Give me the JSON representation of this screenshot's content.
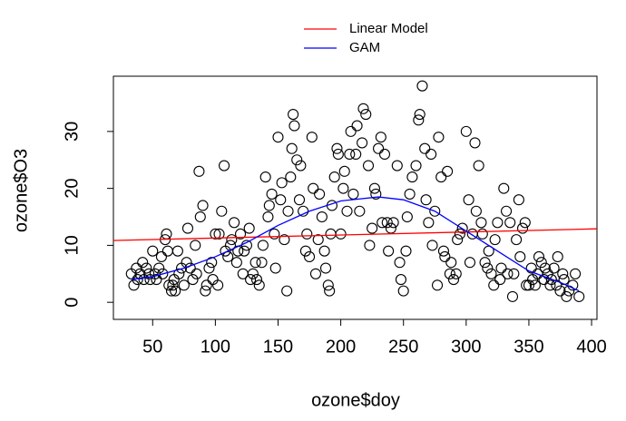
{
  "chart_data": {
    "type": "scatter",
    "x_label": "ozone$doy",
    "y_label": "ozone$O3",
    "xlim": [
      18.7,
      404.3
    ],
    "ylim": [
      -3.0,
      39.7
    ],
    "xticks": [
      50,
      100,
      150,
      200,
      250,
      300,
      350,
      400
    ],
    "yticks": [
      0,
      10,
      20,
      30
    ],
    "point_color": "#000000",
    "legend": "top",
    "x": [
      33,
      35,
      37,
      38,
      40,
      42,
      43,
      45,
      47,
      48,
      50,
      52,
      53,
      55,
      57,
      58,
      60,
      61,
      62,
      63,
      65,
      66,
      67,
      68,
      70,
      71,
      73,
      75,
      77,
      78,
      80,
      82,
      84,
      85,
      87,
      88,
      90,
      92,
      93,
      95,
      97,
      98,
      100,
      102,
      103,
      105,
      107,
      108,
      110,
      112,
      113,
      115,
      117,
      118,
      120,
      122,
      123,
      125,
      127,
      128,
      130,
      132,
      133,
      135,
      137,
      138,
      140,
      142,
      143,
      145,
      147,
      148,
      150,
      152,
      153,
      155,
      157,
      158,
      160,
      161,
      162,
      163,
      165,
      167,
      168,
      170,
      172,
      173,
      175,
      177,
      178,
      180,
      182,
      183,
      185,
      187,
      188,
      190,
      191,
      192,
      193,
      195,
      197,
      198,
      200,
      202,
      203,
      205,
      207,
      208,
      210,
      212,
      213,
      215,
      217,
      218,
      220,
      222,
      223,
      225,
      227,
      228,
      230,
      232,
      233,
      235,
      237,
      238,
      240,
      242,
      245,
      247,
      248,
      250,
      252,
      253,
      255,
      257,
      260,
      262,
      263,
      265,
      267,
      268,
      270,
      272,
      273,
      275,
      277,
      278,
      280,
      282,
      283,
      285,
      287,
      288,
      290,
      292,
      293,
      295,
      297,
      300,
      302,
      303,
      305,
      307,
      308,
      310,
      312,
      313,
      315,
      317,
      318,
      320,
      322,
      323,
      325,
      327,
      328,
      330,
      332,
      333,
      335,
      337,
      338,
      340,
      342,
      343,
      345,
      347,
      348,
      350,
      352,
      353,
      355,
      357,
      358,
      360,
      362,
      363,
      365,
      367,
      368,
      370,
      372,
      373,
      375,
      377,
      378,
      380,
      382,
      385,
      387,
      390
    ],
    "values": [
      5,
      3,
      6,
      4,
      5,
      7,
      4,
      6,
      5,
      4,
      9,
      5,
      4,
      6,
      8,
      5,
      11,
      12,
      9,
      3,
      2,
      3,
      4,
      2,
      9,
      5,
      6,
      3,
      7,
      13,
      6,
      4,
      10,
      5,
      23,
      15,
      17,
      2,
      3,
      6,
      7,
      4,
      12,
      3,
      12,
      16,
      24,
      9,
      8,
      10,
      11,
      14,
      7,
      9,
      12,
      5,
      9,
      10,
      13,
      4,
      5,
      7,
      4,
      3,
      7,
      10,
      22,
      15,
      17,
      19,
      12,
      6,
      29,
      18,
      21,
      11,
      2,
      16,
      22,
      27,
      33,
      31,
      25,
      18,
      24,
      16,
      9,
      12,
      8,
      29,
      20,
      5,
      11,
      19,
      15,
      9,
      6,
      3,
      2,
      12,
      17,
      22,
      27,
      26,
      12,
      20,
      23,
      16,
      26,
      30,
      19,
      26,
      31,
      16,
      28,
      34,
      33,
      24,
      10,
      13,
      20,
      19,
      27,
      29,
      14,
      26,
      14,
      9,
      13,
      14,
      24,
      7,
      4,
      2,
      9,
      15,
      19,
      22,
      24,
      32,
      33,
      38,
      27,
      18,
      14,
      26,
      10,
      16,
      3,
      29,
      22,
      9,
      8,
      23,
      5,
      7,
      4,
      5,
      11,
      12,
      13,
      30,
      18,
      7,
      12,
      28,
      16,
      24,
      14,
      12,
      7,
      6,
      9,
      5,
      3,
      11,
      14,
      4,
      6,
      20,
      16,
      5,
      14,
      1,
      5,
      11,
      18,
      8,
      13,
      14,
      3,
      3,
      6,
      4,
      3,
      5,
      8,
      7,
      4,
      6,
      5,
      3,
      4,
      6,
      3,
      8,
      2,
      5,
      4,
      1,
      2,
      3,
      5,
      1
    ],
    "lines": [
      {
        "name": "Linear Model",
        "color": "#ff0000",
        "x": [
          18.7,
          404.3
        ],
        "values": [
          10.85,
          12.9
        ]
      },
      {
        "name": "GAM",
        "color": "#0000ff",
        "x": [
          33,
          50,
          75,
          100,
          125,
          150,
          175,
          200,
          230,
          250,
          275,
          300,
          325,
          350,
          375,
          390
        ],
        "values": [
          4,
          4.5,
          6,
          8,
          10.5,
          13.5,
          16,
          17.8,
          18.5,
          18,
          16,
          12.5,
          9,
          5.5,
          3.5,
          2
        ]
      }
    ]
  }
}
